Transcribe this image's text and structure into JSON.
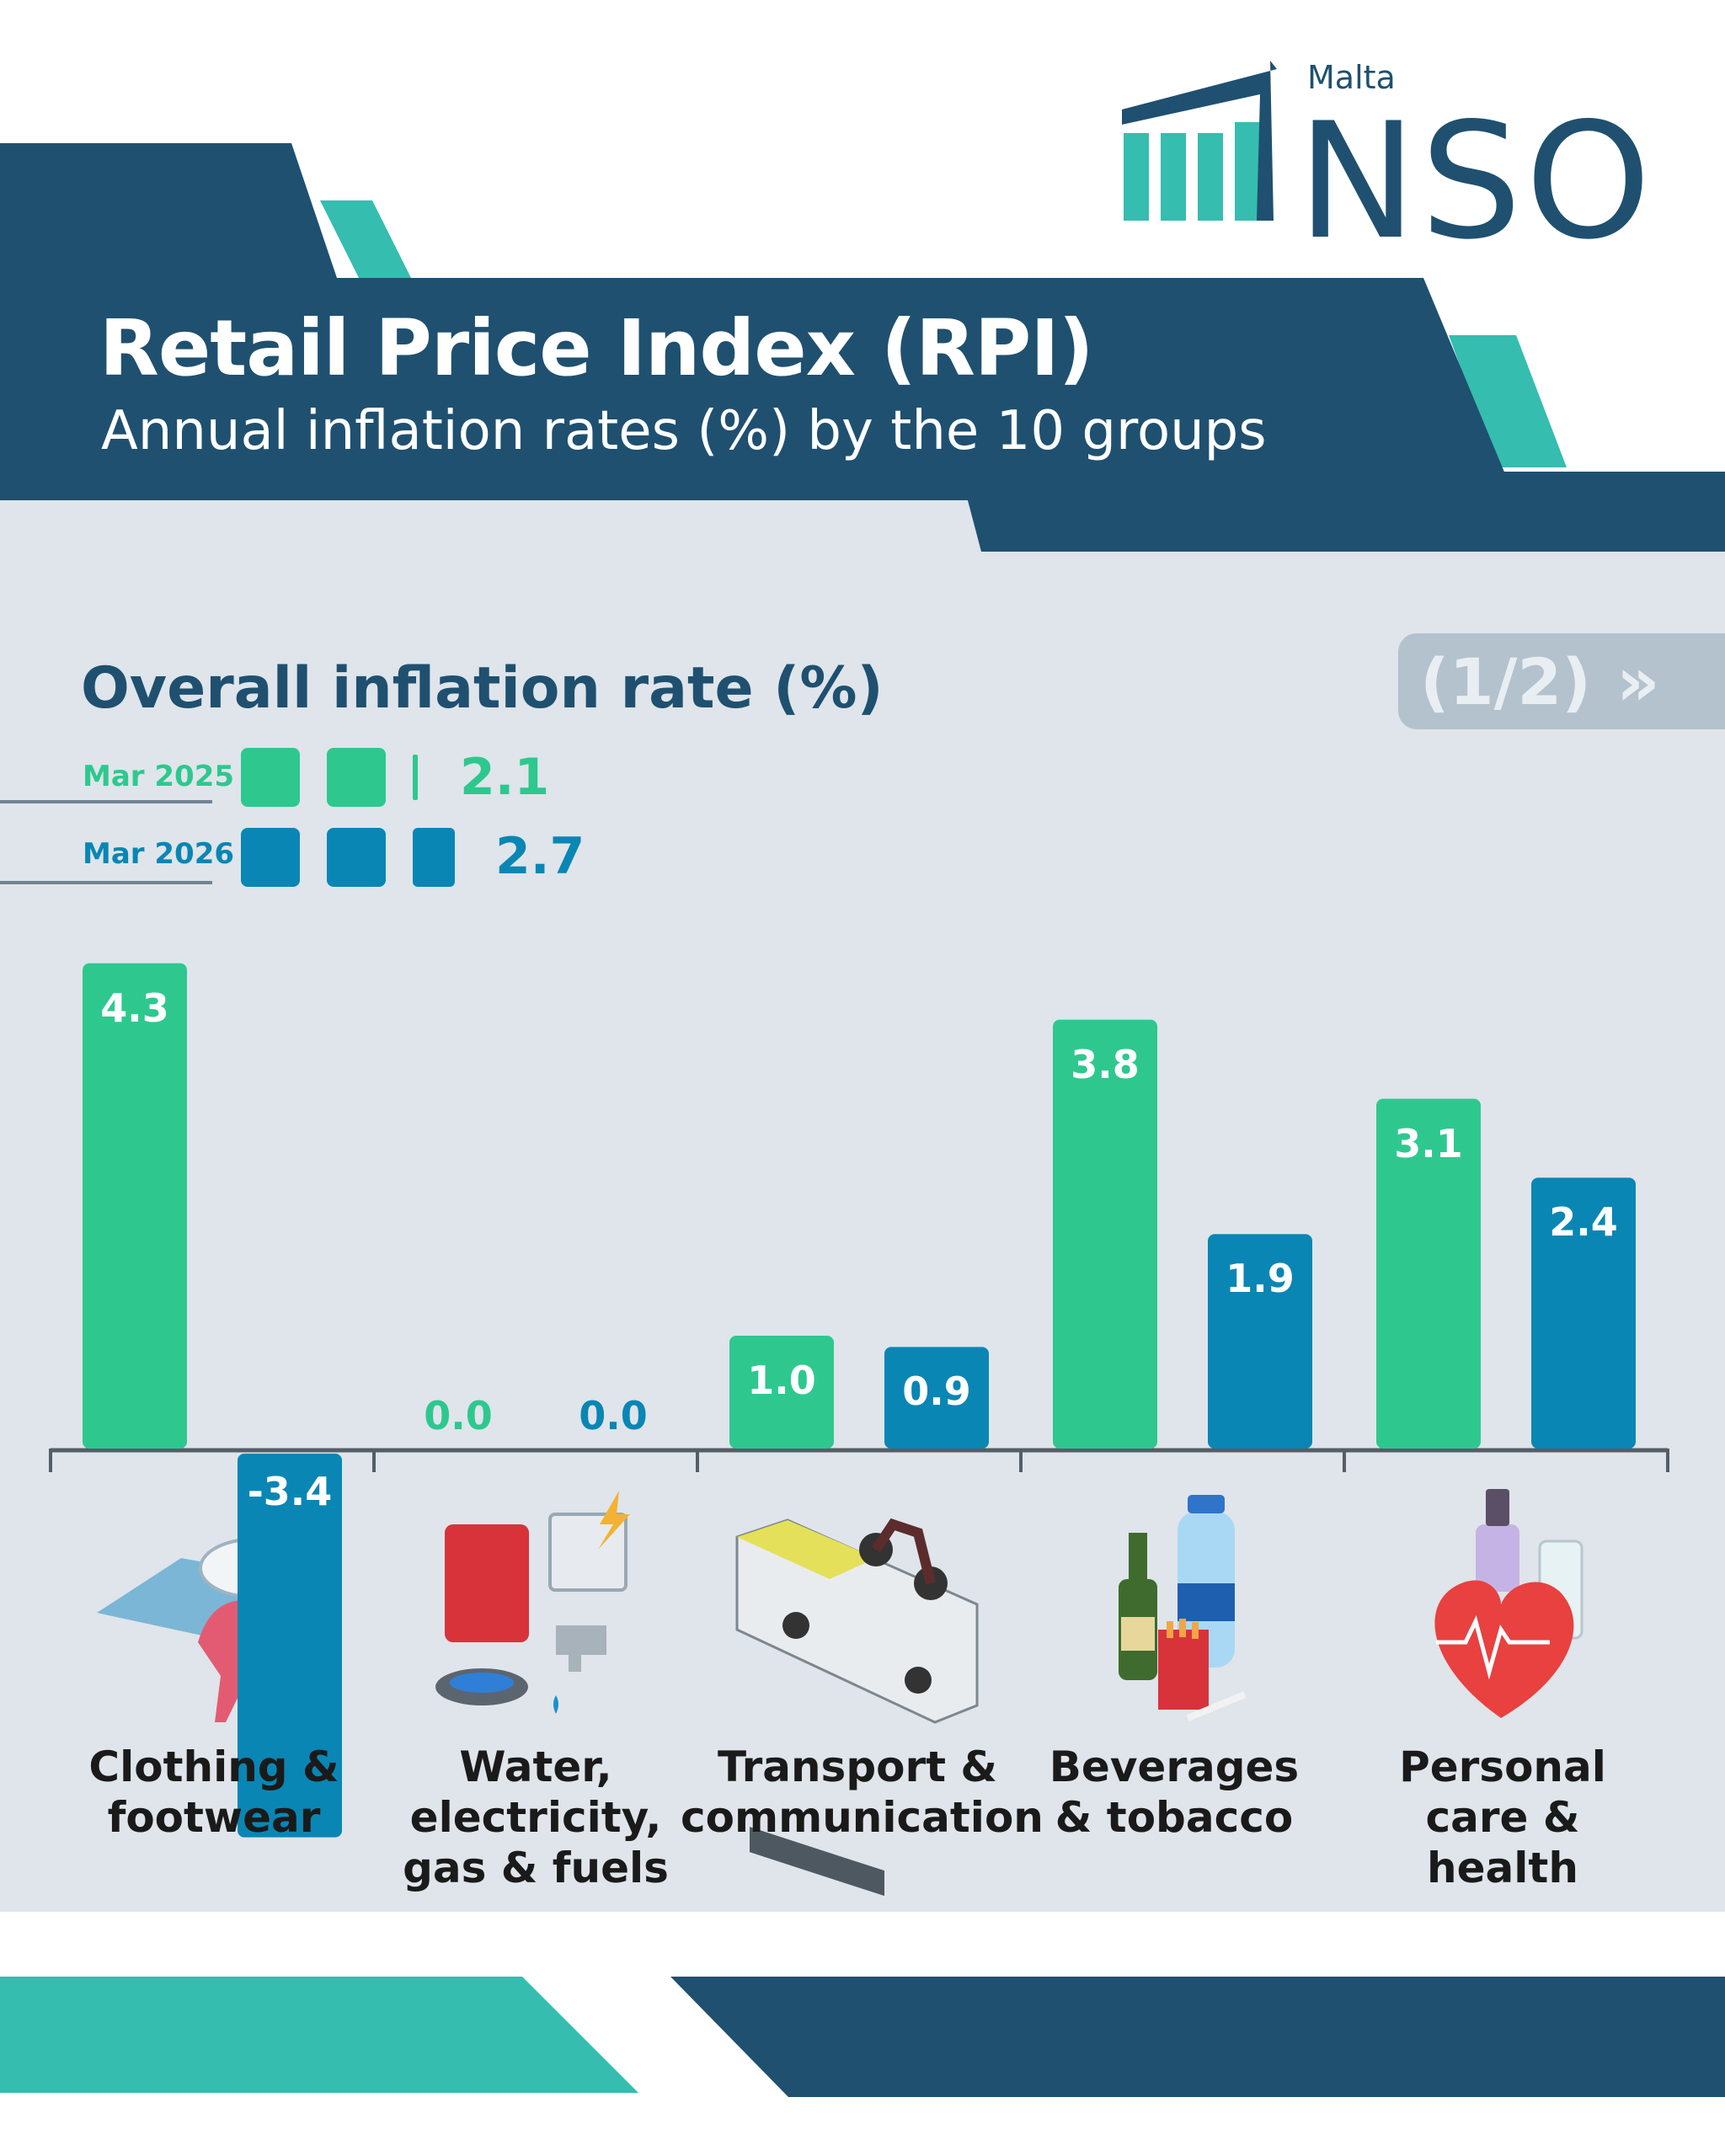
{
  "header": {
    "logo_country": "Malta",
    "logo_name": "NSO",
    "title": "Retail Price Index (RPI)",
    "subtitle": "Annual inflation rates (%) by the 10 groups",
    "page_indicator": "(1/2)",
    "page_arrow": "»"
  },
  "overall": {
    "title": "Overall inflation rate (%)",
    "items": [
      {
        "period": "Mar 2025",
        "value": "2.1"
      },
      {
        "period": "Mar 2026",
        "value": "2.7"
      }
    ]
  },
  "colors": {
    "mar_2025": "#2ec88f",
    "mar_2026": "#0a86b4",
    "navy": "#1f5070",
    "teal": "#35bdb0",
    "panel": "#dfe5ea"
  },
  "icons": [
    "clothing-footwear-icon",
    "utilities-icon",
    "transport-icon",
    "beverages-tobacco-icon",
    "personal-care-health-icon"
  ],
  "chart_data": {
    "type": "bar",
    "categories": [
      "Clothing & footwear",
      "Water, electricity, gas & fuels",
      "Transport & communication",
      "Beverages & tobacco",
      "Personal care & health"
    ],
    "series": [
      {
        "name": "Mar 2025",
        "values": [
          4.3,
          0.0,
          1.0,
          3.8,
          3.1
        ],
        "labels": [
          "4.3",
          "0.0",
          "1.0",
          "3.8",
          "3.1"
        ]
      },
      {
        "name": "Mar 2026",
        "values": [
          -3.4,
          0.0,
          0.9,
          1.9,
          2.4
        ],
        "labels": [
          "-3.4",
          "0.0",
          "0.9",
          "1.9",
          "2.4"
        ]
      }
    ],
    "title": "Annual inflation rates (%) by the 10 groups",
    "xlabel": "",
    "ylabel": "",
    "grid": false,
    "category_lines": [
      [
        "Clothing &",
        "footwear"
      ],
      [
        "Water,",
        "electricity,",
        "gas & fuels"
      ],
      [
        "Transport &",
        "communication"
      ],
      [
        "Beverages",
        "& tobacco"
      ],
      [
        "Personal",
        "care &",
        "health"
      ]
    ]
  }
}
